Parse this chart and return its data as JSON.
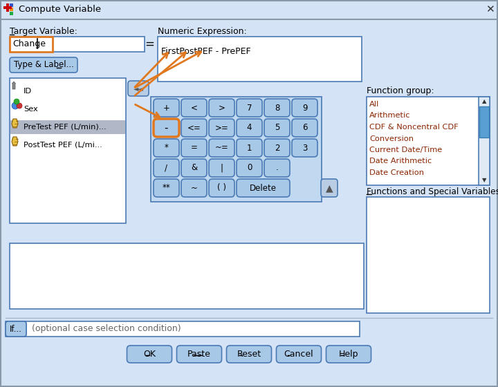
{
  "title_text": "Compute Variable",
  "bg_color": "#d4e3f5",
  "titlebar_color": "#d4e3f5",
  "dialog_bg": "#d4e3f5",
  "target_var_label": "Target Variable:",
  "target_var_value": "Change",
  "numeric_expr_label": "Numeric Expression:",
  "numeric_expr_value": "FirstPostPEF - PrePEF",
  "type_label_btn": "Type & ̲Label...",
  "variables": [
    "ID",
    "Sex",
    "PreTest PEF (L/min)...",
    "PostTest PEF (L/mi..."
  ],
  "highlighted_var": 2,
  "calc_buttons_row1": [
    "+",
    "<",
    ">",
    "7",
    "8",
    "9"
  ],
  "calc_buttons_row2": [
    "-",
    "<=",
    ">=",
    "4",
    "5",
    "6"
  ],
  "calc_buttons_row3": [
    "*",
    "=",
    "~=",
    "1",
    "2",
    "3"
  ],
  "calc_buttons_row4": [
    "/",
    "&",
    "|",
    "0",
    "."
  ],
  "calc_buttons_row5": [
    "**",
    "~",
    "( )",
    "Delete"
  ],
  "function_group_label": "Function group:",
  "function_groups": [
    "All",
    "Arithmetic",
    "CDF & Noncentral CDF",
    "Conversion",
    "Current Date/Time",
    "Date Arithmetic",
    "Date Creation"
  ],
  "functions_special_label": "Functions and Special Variables:",
  "if_btn_text": "If...",
  "if_condition_text": "(optional case selection condition)",
  "bottom_buttons": [
    "OK",
    "Paste",
    "Reset",
    "Cancel",
    "Help"
  ],
  "btn_color": "#a8c8e8",
  "arrow_color": "#e07820",
  "orange_border": "#e07820",
  "text_color": "#000000",
  "fg_text_color": "#8b2500",
  "scrollbar_color": "#5a9fd4",
  "input_bg": "#ffffff",
  "listbox_bg": "#ffffff",
  "border_color": "#4a7ab5",
  "outer_border": "#7a9ec0"
}
